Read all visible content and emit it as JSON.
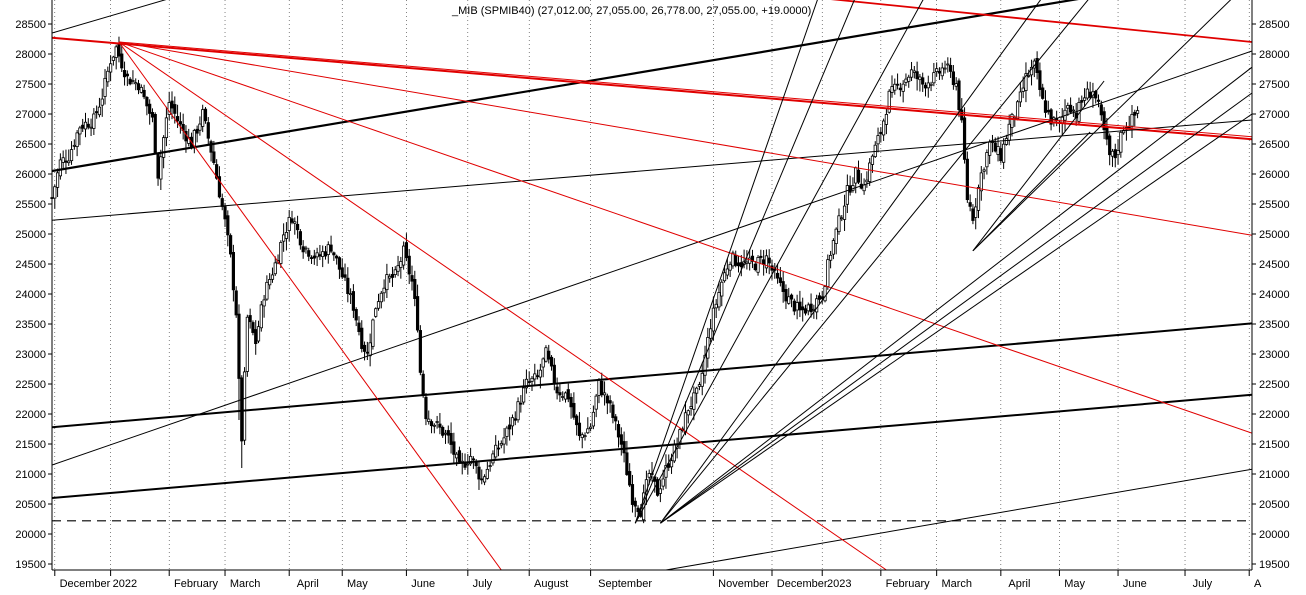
{
  "title": "_MIB (SPMIB40) (27,012.00, 27,055.00, 26,778.00, 27,055.00, +19.0000)",
  "colors": {
    "background": "#ffffff",
    "candles": "#000000",
    "red_lines": "#e00000",
    "black_lines": "#000000"
  },
  "chart_data": {
    "type": "candlestick",
    "title": "_MIB (SPMIB40) (27,012.00, 27,055.00, 26,778.00, 27,055.00, +19.0000)",
    "ylim": [
      19400,
      28900
    ],
    "y_ticks": [
      "19500",
      "20000",
      "20500",
      "21000",
      "21500",
      "22000",
      "22500",
      "23000",
      "23500",
      "24000",
      "24500",
      "25000",
      "25500",
      "26000",
      "26500",
      "27000",
      "27500",
      "28000",
      "28500"
    ],
    "x_labels": [
      "December",
      "2022",
      "February",
      "March",
      "April",
      "May",
      "June",
      "July",
      "August",
      "September",
      "November",
      "December",
      "2023",
      "February",
      "March",
      "April",
      "May",
      "June",
      "July",
      "A"
    ],
    "x_index_range": [
      0,
      430
    ],
    "x_label_index": [
      2,
      21,
      43,
      63,
      87,
      105,
      128,
      150,
      172,
      195,
      238,
      259,
      277,
      298,
      318,
      342,
      362,
      383,
      408,
      430
    ],
    "month_boundary_index": [
      1,
      21,
      42,
      62,
      85,
      104,
      127,
      149,
      171,
      193,
      237,
      258,
      276,
      297,
      317,
      340,
      361,
      382,
      406,
      429
    ],
    "grid": {
      "horizontal": false,
      "vertical": true,
      "style": "dotted"
    },
    "support_level": 20220,
    "ohlc_keypoints": [
      {
        "i": 0,
        "close": 25600
      },
      {
        "i": 3,
        "close": 26200
      },
      {
        "i": 6,
        "close": 26300
      },
      {
        "i": 10,
        "close": 26800
      },
      {
        "i": 15,
        "close": 26900
      },
      {
        "i": 18,
        "close": 27300
      },
      {
        "i": 21,
        "close": 27900
      },
      {
        "i": 23,
        "close": 28100
      },
      {
        "i": 27,
        "close": 27600
      },
      {
        "i": 31,
        "close": 27500
      },
      {
        "i": 36,
        "close": 26900
      },
      {
        "i": 38,
        "close": 26000
      },
      {
        "i": 42,
        "close": 27200
      },
      {
        "i": 46,
        "close": 26800
      },
      {
        "i": 50,
        "close": 26500
      },
      {
        "i": 54,
        "close": 27000
      },
      {
        "i": 58,
        "close": 26200
      },
      {
        "i": 62,
        "close": 25200
      },
      {
        "i": 64,
        "close": 24600
      },
      {
        "i": 66,
        "close": 23700
      },
      {
        "i": 67,
        "close": 22500
      },
      {
        "i": 68,
        "close": 21600
      },
      {
        "i": 70,
        "close": 23600
      },
      {
        "i": 73,
        "close": 23200
      },
      {
        "i": 76,
        "close": 24000
      },
      {
        "i": 80,
        "close": 24500
      },
      {
        "i": 83,
        "close": 25000
      },
      {
        "i": 86,
        "close": 25300
      },
      {
        "i": 90,
        "close": 24800
      },
      {
        "i": 95,
        "close": 24600
      },
      {
        "i": 100,
        "close": 24800
      },
      {
        "i": 104,
        "close": 24300
      },
      {
        "i": 108,
        "close": 23800
      },
      {
        "i": 111,
        "close": 23200
      },
      {
        "i": 113,
        "close": 23000
      },
      {
        "i": 116,
        "close": 23800
      },
      {
        "i": 119,
        "close": 24200
      },
      {
        "i": 123,
        "close": 24300
      },
      {
        "i": 126,
        "close": 24700
      },
      {
        "i": 129,
        "close": 24200
      },
      {
        "i": 131,
        "close": 23500
      },
      {
        "i": 132,
        "close": 22700
      },
      {
        "i": 134,
        "close": 22000
      },
      {
        "i": 138,
        "close": 21800
      },
      {
        "i": 142,
        "close": 21600
      },
      {
        "i": 146,
        "close": 21100
      },
      {
        "i": 150,
        "close": 21300
      },
      {
        "i": 154,
        "close": 20900
      },
      {
        "i": 158,
        "close": 21300
      },
      {
        "i": 162,
        "close": 21600
      },
      {
        "i": 166,
        "close": 22000
      },
      {
        "i": 170,
        "close": 22500
      },
      {
        "i": 174,
        "close": 22600
      },
      {
        "i": 177,
        "close": 23000
      },
      {
        "i": 181,
        "close": 22400
      },
      {
        "i": 185,
        "close": 22300
      },
      {
        "i": 189,
        "close": 21600
      },
      {
        "i": 193,
        "close": 21800
      },
      {
        "i": 196,
        "close": 22500
      },
      {
        "i": 200,
        "close": 22100
      },
      {
        "i": 204,
        "close": 21500
      },
      {
        "i": 208,
        "close": 20600
      },
      {
        "i": 211,
        "close": 20400
      },
      {
        "i": 214,
        "close": 21000
      },
      {
        "i": 217,
        "close": 20700
      },
      {
        "i": 221,
        "close": 21200
      },
      {
        "i": 224,
        "close": 21500
      },
      {
        "i": 228,
        "close": 22100
      },
      {
        "i": 232,
        "close": 22400
      },
      {
        "i": 236,
        "close": 23500
      },
      {
        "i": 240,
        "close": 24200
      },
      {
        "i": 243,
        "close": 24600
      },
      {
        "i": 248,
        "close": 24500
      },
      {
        "i": 252,
        "close": 24500
      },
      {
        "i": 256,
        "close": 24600
      },
      {
        "i": 260,
        "close": 24200
      },
      {
        "i": 264,
        "close": 23900
      },
      {
        "i": 268,
        "close": 23700
      },
      {
        "i": 272,
        "close": 23800
      },
      {
        "i": 276,
        "close": 24000
      },
      {
        "i": 279,
        "close": 24700
      },
      {
        "i": 282,
        "close": 25200
      },
      {
        "i": 285,
        "close": 25700
      },
      {
        "i": 288,
        "close": 26000
      },
      {
        "i": 291,
        "close": 25800
      },
      {
        "i": 294,
        "close": 26300
      },
      {
        "i": 297,
        "close": 26700
      },
      {
        "i": 300,
        "close": 27300
      },
      {
        "i": 304,
        "close": 27500
      },
      {
        "i": 308,
        "close": 27700
      },
      {
        "i": 312,
        "close": 27500
      },
      {
        "i": 316,
        "close": 27600
      },
      {
        "i": 320,
        "close": 27800
      },
      {
        "i": 324,
        "close": 27500
      },
      {
        "i": 326,
        "close": 26800
      },
      {
        "i": 328,
        "close": 25600
      },
      {
        "i": 330,
        "close": 25300
      },
      {
        "i": 333,
        "close": 26000
      },
      {
        "i": 336,
        "close": 26500
      },
      {
        "i": 340,
        "close": 26300
      },
      {
        "i": 343,
        "close": 26800
      },
      {
        "i": 346,
        "close": 27100
      },
      {
        "i": 349,
        "close": 27600
      },
      {
        "i": 352,
        "close": 27800
      },
      {
        "i": 355,
        "close": 27200
      },
      {
        "i": 358,
        "close": 26900
      },
      {
        "i": 361,
        "close": 26800
      },
      {
        "i": 364,
        "close": 27200
      },
      {
        "i": 367,
        "close": 27000
      },
      {
        "i": 370,
        "close": 27300
      },
      {
        "i": 373,
        "close": 27400
      },
      {
        "i": 375,
        "close": 27100
      },
      {
        "i": 377,
        "close": 26700
      },
      {
        "i": 379,
        "close": 26300
      },
      {
        "i": 381,
        "close": 26300
      },
      {
        "i": 384,
        "close": 26800
      },
      {
        "i": 387,
        "close": 26900
      },
      {
        "i": 389,
        "close": 27055
      }
    ],
    "trendlines": [
      {
        "color": "black",
        "width": 2.2,
        "from": {
          "i": 0,
          "v": 26050
        },
        "to": {
          "i": 372,
          "v": 28950
        }
      },
      {
        "color": "red",
        "width": 2.0,
        "from": {
          "i": 0,
          "v": 28270
        },
        "to": {
          "i": 430,
          "v": 26580
        }
      },
      {
        "color": "red",
        "width": 1.8,
        "from": {
          "i": 240,
          "v": 29100
        },
        "to": {
          "i": 430,
          "v": 28200
        }
      },
      {
        "color": "black",
        "width": 2.0,
        "from": {
          "i": 0,
          "v": 21780
        },
        "to": {
          "i": 430,
          "v": 23510
        }
      },
      {
        "color": "black",
        "width": 2.0,
        "from": {
          "i": 0,
          "v": 20600
        },
        "to": {
          "i": 430,
          "v": 22320
        }
      },
      {
        "color": "black",
        "width": 1.0,
        "from": {
          "i": 0,
          "v": 25230
        },
        "to": {
          "i": 430,
          "v": 26900
        }
      },
      {
        "color": "black",
        "width": 1.0,
        "from": {
          "i": 0,
          "v": 21150
        },
        "to": {
          "i": 430,
          "v": 28050
        }
      },
      {
        "color": "black",
        "width": 1.0,
        "from": {
          "i": 0,
          "v": 28350
        },
        "to": {
          "i": 77,
          "v": 29400
        }
      },
      {
        "color": "black",
        "width": 1.0,
        "from": {
          "i": 220,
          "v": 19400
        },
        "to": {
          "i": 430,
          "v": 21080
        }
      },
      {
        "color": "red",
        "width": 1.0,
        "from": {
          "i": 24,
          "v": 28200
        },
        "to": {
          "i": 161,
          "v": 19400
        }
      },
      {
        "color": "red",
        "width": 1.0,
        "from": {
          "i": 24,
          "v": 28200
        },
        "to": {
          "i": 299,
          "v": 19400
        }
      },
      {
        "color": "red",
        "width": 1.0,
        "from": {
          "i": 24,
          "v": 28200
        },
        "to": {
          "i": 430,
          "v": 21680
        }
      },
      {
        "color": "red",
        "width": 1.0,
        "from": {
          "i": 24,
          "v": 28200
        },
        "to": {
          "i": 430,
          "v": 24980
        }
      },
      {
        "color": "red",
        "width": 1.0,
        "from": {
          "i": 24,
          "v": 28200
        },
        "to": {
          "i": 430,
          "v": 26620
        }
      },
      {
        "color": "black",
        "width": 1.0,
        "from": {
          "i": 209,
          "v": 20180
        },
        "to": {
          "i": 278,
          "v": 29400
        }
      },
      {
        "color": "black",
        "width": 1.0,
        "from": {
          "i": 209,
          "v": 20180
        },
        "to": {
          "i": 292,
          "v": 29400
        }
      },
      {
        "color": "black",
        "width": 1.0,
        "from": {
          "i": 209,
          "v": 20180
        },
        "to": {
          "i": 318,
          "v": 29400
        }
      },
      {
        "color": "black",
        "width": 1.0,
        "from": {
          "i": 218,
          "v": 20180
        },
        "to": {
          "i": 362,
          "v": 29400
        }
      },
      {
        "color": "black",
        "width": 1.0,
        "from": {
          "i": 218,
          "v": 20180
        },
        "to": {
          "i": 380,
          "v": 29400
        }
      },
      {
        "color": "black",
        "width": 1.0,
        "from": {
          "i": 218,
          "v": 20180
        },
        "to": {
          "i": 430,
          "v": 27780
        }
      },
      {
        "color": "black",
        "width": 1.0,
        "from": {
          "i": 218,
          "v": 20180
        },
        "to": {
          "i": 430,
          "v": 27350
        }
      },
      {
        "color": "black",
        "width": 1.0,
        "from": {
          "i": 218,
          "v": 20180
        },
        "to": {
          "i": 430,
          "v": 27000
        }
      },
      {
        "color": "black",
        "width": 1.0,
        "from": {
          "i": 330,
          "v": 24720
        },
        "to": {
          "i": 377,
          "v": 27550
        }
      },
      {
        "color": "black",
        "width": 1.0,
        "from": {
          "i": 330,
          "v": 24720
        },
        "to": {
          "i": 372,
          "v": 26700
        }
      },
      {
        "color": "black",
        "width": 1.0,
        "from": {
          "i": 330,
          "v": 24720
        },
        "to": {
          "i": 430,
          "v": 29250
        }
      }
    ]
  }
}
